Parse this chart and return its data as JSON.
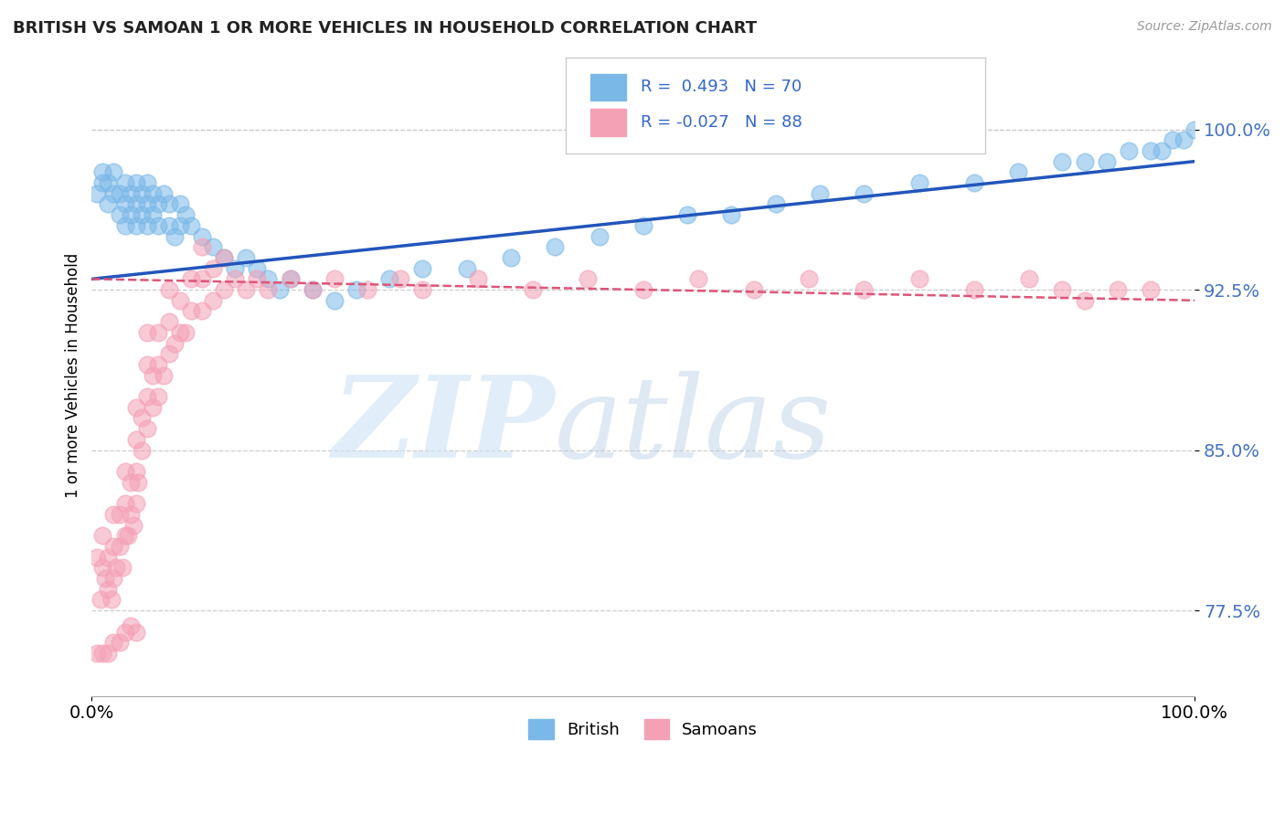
{
  "title": "BRITISH VS SAMOAN 1 OR MORE VEHICLES IN HOUSEHOLD CORRELATION CHART",
  "source": "Source: ZipAtlas.com",
  "ylabel": "1 or more Vehicles in Household",
  "xlim": [
    0.0,
    1.0
  ],
  "ylim": [
    0.735,
    1.035
  ],
  "ytick_vals": [
    0.775,
    0.85,
    0.925,
    1.0
  ],
  "ytick_labels": [
    "77.5%",
    "85.0%",
    "92.5%",
    "100.0%"
  ],
  "xtick_vals": [
    0.0,
    1.0
  ],
  "xtick_labels": [
    "0.0%",
    "100.0%"
  ],
  "background_color": "#ffffff",
  "grid_color": "#cccccc",
  "british_color": "#7ab8e8",
  "samoan_color": "#f4a0b5",
  "british_line_color": "#2255bb",
  "samoan_line_color": "#dd5577",
  "R_british": 0.493,
  "N_british": 70,
  "R_samoan": -0.027,
  "N_samoan": 88,
  "british_x": [
    0.005,
    0.01,
    0.01,
    0.015,
    0.015,
    0.02,
    0.02,
    0.025,
    0.025,
    0.03,
    0.03,
    0.03,
    0.035,
    0.035,
    0.04,
    0.04,
    0.04,
    0.045,
    0.045,
    0.05,
    0.05,
    0.05,
    0.055,
    0.055,
    0.06,
    0.06,
    0.065,
    0.07,
    0.07,
    0.075,
    0.08,
    0.08,
    0.085,
    0.09,
    0.1,
    0.11,
    0.12,
    0.13,
    0.14,
    0.15,
    0.16,
    0.17,
    0.18,
    0.2,
    0.22,
    0.24,
    0.27,
    0.3,
    0.34,
    0.38,
    0.42,
    0.46,
    0.5,
    0.54,
    0.58,
    0.62,
    0.66,
    0.7,
    0.75,
    0.8,
    0.84,
    0.88,
    0.9,
    0.92,
    0.94,
    0.96,
    0.97,
    0.98,
    0.99,
    1.0
  ],
  "british_y": [
    0.97,
    0.975,
    0.98,
    0.965,
    0.975,
    0.97,
    0.98,
    0.96,
    0.97,
    0.955,
    0.965,
    0.975,
    0.96,
    0.97,
    0.955,
    0.965,
    0.975,
    0.96,
    0.97,
    0.955,
    0.965,
    0.975,
    0.96,
    0.97,
    0.955,
    0.965,
    0.97,
    0.955,
    0.965,
    0.95,
    0.955,
    0.965,
    0.96,
    0.955,
    0.95,
    0.945,
    0.94,
    0.935,
    0.94,
    0.935,
    0.93,
    0.925,
    0.93,
    0.925,
    0.92,
    0.925,
    0.93,
    0.935,
    0.935,
    0.94,
    0.945,
    0.95,
    0.955,
    0.96,
    0.96,
    0.965,
    0.97,
    0.97,
    0.975,
    0.975,
    0.98,
    0.985,
    0.985,
    0.985,
    0.99,
    0.99,
    0.99,
    0.995,
    0.995,
    1.0
  ],
  "samoan_x": [
    0.005,
    0.008,
    0.01,
    0.01,
    0.012,
    0.015,
    0.015,
    0.018,
    0.02,
    0.02,
    0.02,
    0.022,
    0.025,
    0.025,
    0.028,
    0.03,
    0.03,
    0.03,
    0.033,
    0.035,
    0.035,
    0.038,
    0.04,
    0.04,
    0.04,
    0.04,
    0.042,
    0.045,
    0.045,
    0.05,
    0.05,
    0.05,
    0.05,
    0.055,
    0.055,
    0.06,
    0.06,
    0.06,
    0.065,
    0.07,
    0.07,
    0.07,
    0.075,
    0.08,
    0.08,
    0.085,
    0.09,
    0.09,
    0.1,
    0.1,
    0.1,
    0.11,
    0.11,
    0.12,
    0.12,
    0.13,
    0.14,
    0.15,
    0.16,
    0.18,
    0.2,
    0.22,
    0.25,
    0.28,
    0.3,
    0.35,
    0.4,
    0.45,
    0.5,
    0.55,
    0.6,
    0.65,
    0.7,
    0.75,
    0.8,
    0.85,
    0.88,
    0.9,
    0.93,
    0.96,
    0.005,
    0.01,
    0.015,
    0.02,
    0.025,
    0.03,
    0.035,
    0.04
  ],
  "samoan_y": [
    0.8,
    0.78,
    0.795,
    0.81,
    0.79,
    0.785,
    0.8,
    0.78,
    0.79,
    0.805,
    0.82,
    0.795,
    0.805,
    0.82,
    0.795,
    0.81,
    0.825,
    0.84,
    0.81,
    0.82,
    0.835,
    0.815,
    0.825,
    0.84,
    0.855,
    0.87,
    0.835,
    0.85,
    0.865,
    0.86,
    0.875,
    0.89,
    0.905,
    0.87,
    0.885,
    0.875,
    0.89,
    0.905,
    0.885,
    0.895,
    0.91,
    0.925,
    0.9,
    0.905,
    0.92,
    0.905,
    0.915,
    0.93,
    0.915,
    0.93,
    0.945,
    0.92,
    0.935,
    0.925,
    0.94,
    0.93,
    0.925,
    0.93,
    0.925,
    0.93,
    0.925,
    0.93,
    0.925,
    0.93,
    0.925,
    0.93,
    0.925,
    0.93,
    0.925,
    0.93,
    0.925,
    0.93,
    0.925,
    0.93,
    0.925,
    0.93,
    0.925,
    0.92,
    0.925,
    0.925,
    0.755,
    0.755,
    0.755,
    0.76,
    0.76,
    0.765,
    0.768,
    0.765
  ]
}
